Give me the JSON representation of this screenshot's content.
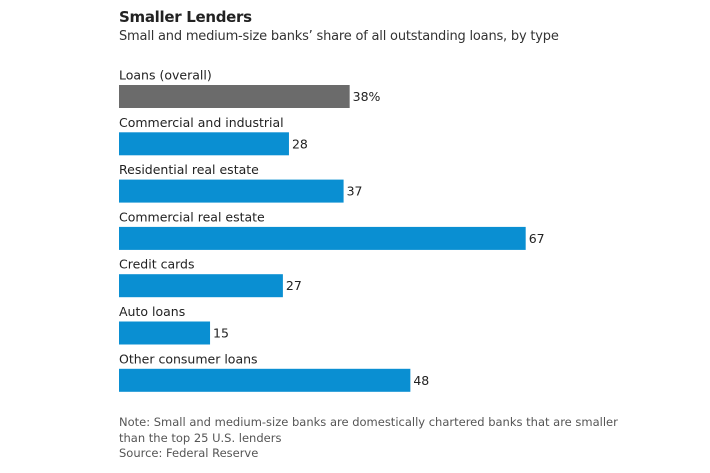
{
  "chart_data": {
    "type": "bar",
    "orientation": "horizontal",
    "title": "Smaller Lenders",
    "subtitle": "Small and medium-size banks’ share of all outstanding loans, by type",
    "categories": [
      "Loans (overall)",
      "Commercial and industrial",
      "Residential real estate",
      "Commercial real estate",
      "Credit cards",
      "Auto loans",
      "Other consumer loans"
    ],
    "values": [
      38,
      28,
      37,
      67,
      27,
      15,
      48
    ],
    "value_labels": [
      "38%",
      "28",
      "37",
      "67",
      "27",
      "15",
      "48"
    ],
    "colors": [
      "#6b6b6b",
      "#0a8fd2",
      "#0a8fd2",
      "#0a8fd2",
      "#0a8fd2",
      "#0a8fd2",
      "#0a8fd2"
    ],
    "note": "Note: Small and medium-size banks are domestically chartered banks that are smaller than the top 25 U.S. lenders",
    "source": "Source: Federal Reserve"
  }
}
